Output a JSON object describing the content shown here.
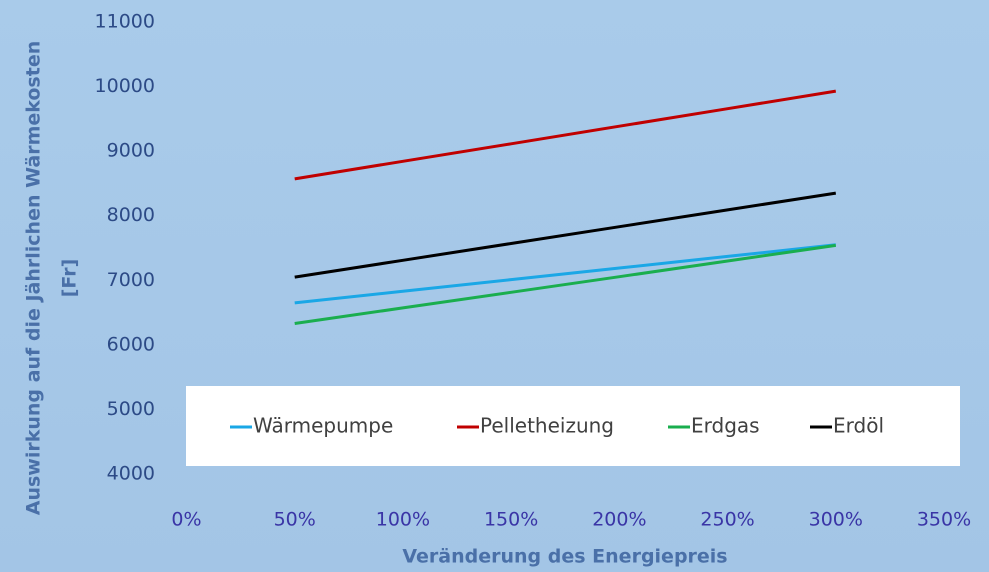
{
  "chart_data": {
    "type": "line",
    "x_label": "Veränderung des Energiepreis",
    "y_label": [
      "Auswirkung auf die Jährlichen Wärmekosten",
      "[Fr]"
    ],
    "x": [
      50,
      100,
      150,
      200,
      250,
      300
    ],
    "series": [
      {
        "name": "Wärmepumpe",
        "color": "#1aa7e6",
        "values": [
          6650,
          6830,
          7010,
          7190,
          7370,
          7550
        ]
      },
      {
        "name": "Pelletheizung",
        "color": "#c00000",
        "values": [
          8570,
          8842,
          9114,
          9386,
          9658,
          9930
        ]
      },
      {
        "name": "Erdgas",
        "color": "#1aae4e",
        "values": [
          6330,
          6572,
          6814,
          7056,
          7298,
          7540
        ]
      },
      {
        "name": "Erdöl",
        "color": "#000000",
        "values": [
          7050,
          7310,
          7570,
          7830,
          8090,
          8350
        ]
      }
    ],
    "xlim": [
      0,
      350
    ],
    "xticks": [
      {
        "value": 0,
        "label": "0%"
      },
      {
        "value": 50,
        "label": "50%"
      },
      {
        "value": 100,
        "label": "100%"
      },
      {
        "value": 150,
        "label": "150%"
      },
      {
        "value": 200,
        "label": "200%"
      },
      {
        "value": 250,
        "label": "250%"
      },
      {
        "value": 300,
        "label": "300%"
      },
      {
        "value": 350,
        "label": "350%"
      }
    ],
    "ylim": [
      4000,
      11000
    ],
    "yticks": [
      4000,
      5000,
      6000,
      7000,
      8000,
      9000,
      10000,
      11000
    ],
    "grid": false,
    "legend": "bottom"
  }
}
